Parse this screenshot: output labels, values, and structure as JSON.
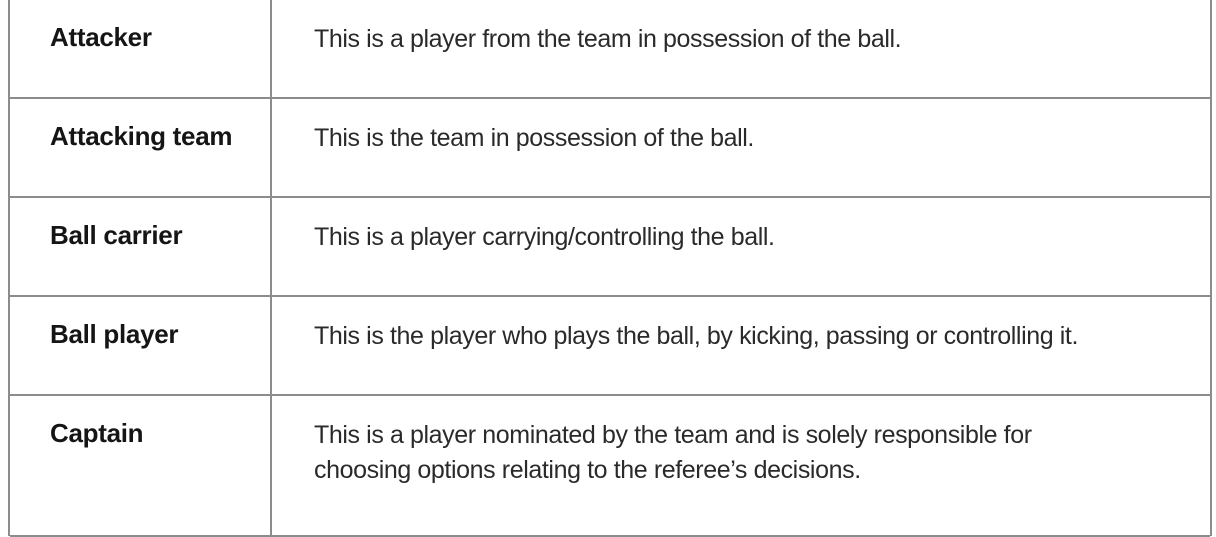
{
  "glossary": {
    "rows": [
      {
        "term": "Attacker",
        "definition": "This is a player from the team in possession of the ball."
      },
      {
        "term": "Attacking team",
        "definition": "This is the team in possession of the ball."
      },
      {
        "term": "Ball carrier",
        "definition": "This is a player carrying/controlling the ball."
      },
      {
        "term": "Ball player",
        "definition": "This is the player who plays the ball, by kicking, passing or controlling it."
      },
      {
        "term": "Captain",
        "definition_lines": [
          "This is a player nominated by the team and is solely responsible for",
          "choosing options relating to the referee’s decisions."
        ]
      }
    ]
  }
}
